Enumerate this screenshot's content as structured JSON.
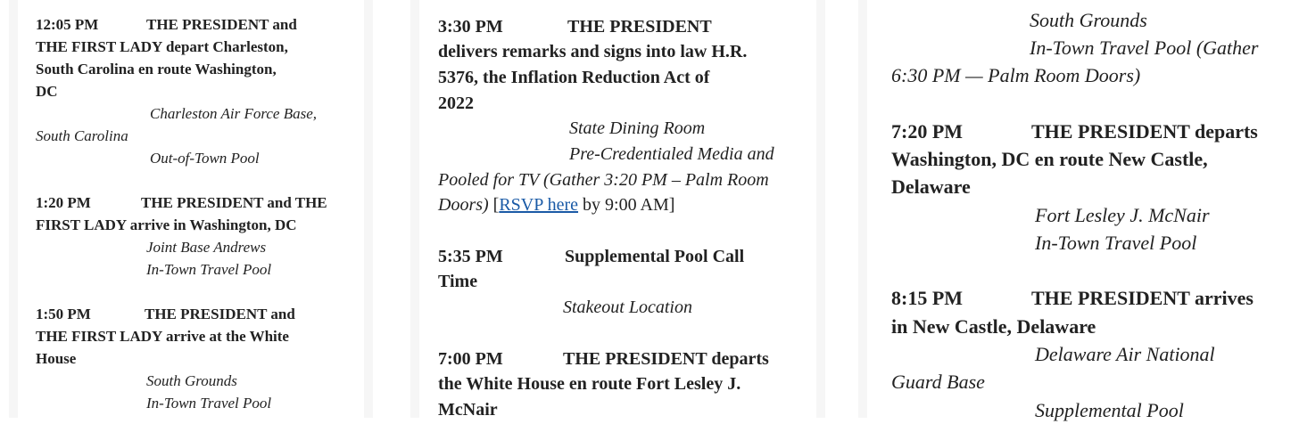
{
  "columns": [
    {
      "entries": [
        {
          "time": "12:05 PM",
          "heading": [
            "THE PRESIDENT and",
            "THE FIRST LADY depart Charleston,",
            "South Carolina en route Washington,",
            "DC"
          ],
          "details": [
            "Charleston Air Force Base,",
            "South Carolina",
            "Out-of-Town Pool"
          ]
        },
        {
          "time": "1:20 PM",
          "heading": [
            "THE PRESIDENT and THE",
            "FIRST LADY arrive in Washington, DC"
          ],
          "details": [
            "Joint Base Andrews",
            "In-Town Travel Pool"
          ]
        },
        {
          "time": "1:50 PM",
          "heading": [
            "THE PRESIDENT and",
            "THE FIRST LADY arrive at the White",
            "House"
          ],
          "details": [
            "South Grounds",
            "In-Town Travel Pool"
          ]
        }
      ]
    },
    {
      "entries": [
        {
          "time": "3:30 PM",
          "heading": [
            "THE PRESIDENT",
            "delivers remarks and signs into law H.R.",
            "5376, the Inflation Reduction Act of",
            "2022"
          ],
          "details": [
            "State Dining Room",
            "Pre-Credentialed Media and",
            "Pooled for TV (Gather 3:20 PM – Palm Room",
            "Doors)"
          ],
          "rsvp": {
            "open": "[",
            "link": "RSVP here",
            "after": "by 9:00 AM]"
          }
        },
        {
          "time": "5:35 PM",
          "heading": [
            "Supplemental Pool Call",
            "Time"
          ],
          "details": [
            "Stakeout Location"
          ]
        },
        {
          "time": "7:00 PM",
          "heading": [
            "THE PRESIDENT departs",
            "the White House en route Fort Lesley J.",
            "McNair"
          ]
        }
      ]
    },
    {
      "continuation": [
        "South Grounds",
        "In-Town Travel Pool (Gather",
        "6:30 PM — Palm Room Doors)"
      ],
      "entries": [
        {
          "time": "7:20 PM",
          "heading": [
            "THE PRESIDENT departs",
            "Washington, DC en route New Castle,",
            "Delaware"
          ],
          "details": [
            "Fort Lesley J. McNair",
            "In-Town Travel Pool"
          ]
        },
        {
          "time": "8:15 PM",
          "heading": [
            "THE PRESIDENT arrives",
            "in New Castle, Delaware"
          ],
          "details": [
            "Delaware Air National",
            "Guard Base",
            "Supplemental Pool"
          ]
        }
      ]
    }
  ],
  "colors": {
    "link": "#1a5aa6",
    "text": "#222222",
    "panel_border": "#f6f6f6"
  }
}
